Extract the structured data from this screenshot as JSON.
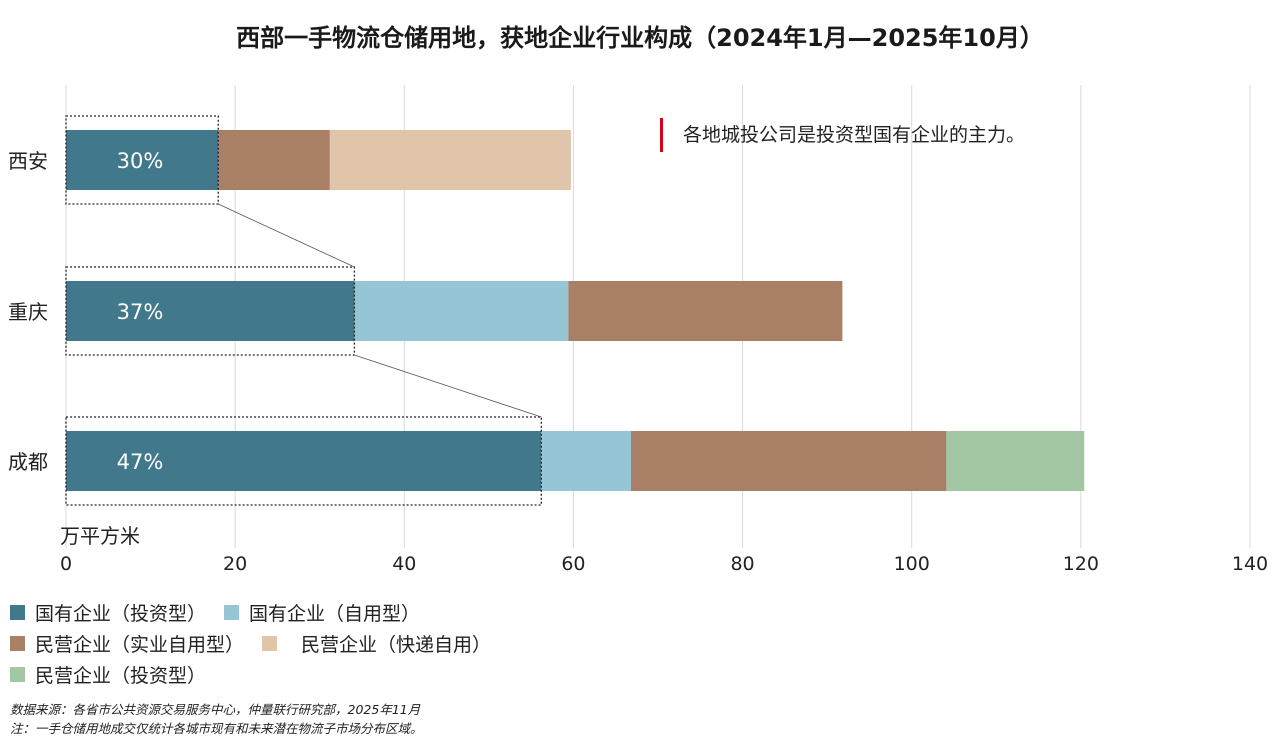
{
  "title": "西部一手物流仓储用地，获地企业行业构成（2024年1月—2025年10月）",
  "annotation": "各地城投公司是投资型国有企业的主力。",
  "chart_data": {
    "type": "bar",
    "orientation": "horizontal",
    "stacked": true,
    "title": "西部一手物流仓储用地，获地企业行业构成（2024年1月—2025年10月）",
    "xlabel": "万平方米",
    "xlim": [
      0,
      140
    ],
    "xticks": [
      0,
      20,
      40,
      60,
      80,
      100,
      120,
      140
    ],
    "grid": true,
    "legend_position": "bottom-left",
    "categories": [
      "西安",
      "重庆",
      "成都"
    ],
    "series": [
      {
        "name": "国有企业（投资型）",
        "color": "#41788c",
        "values": [
          18.0,
          34.1,
          56.2
        ]
      },
      {
        "name": "国有企业（自用型）",
        "color": "#96c6d6",
        "values": [
          0,
          25.3,
          10.6
        ]
      },
      {
        "name": "民营企业（实业自用型）",
        "color": "#a98066",
        "values": [
          13.2,
          32.4,
          37.3
        ]
      },
      {
        "name": "民营企业（快递自用）",
        "color": "#e0c5ab",
        "values": [
          28.5,
          0,
          0
        ]
      },
      {
        "name": "民营企业（投资型）",
        "color": "#a3c7a3",
        "values": [
          0,
          0,
          16.3
        ]
      }
    ],
    "data_labels": [
      "30%",
      "37%",
      "47%"
    ]
  },
  "footer": {
    "source": "数据来源：各省市公共资源交易服务中心，仲量联行研究部，2025年11月",
    "note": "注：一手仓储用地成交仅统计各城市现有和未来潜在物流子市场分布区域。"
  }
}
